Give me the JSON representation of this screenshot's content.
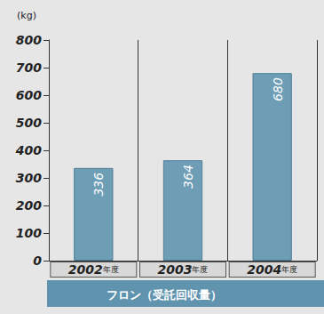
{
  "chart_data": {
    "type": "bar",
    "title": "フロン（受託回収量）",
    "y_label": "(kg)",
    "categories": [
      "2002年度",
      "2003年度",
      "2004年度"
    ],
    "values": [
      336,
      364,
      680
    ],
    "color": "#6e9db6",
    "ylim": [
      0,
      800
    ],
    "yticks": [
      0,
      100,
      200,
      300,
      400,
      500,
      600,
      700,
      800
    ],
    "grid": true,
    "data_labels": true
  }
}
